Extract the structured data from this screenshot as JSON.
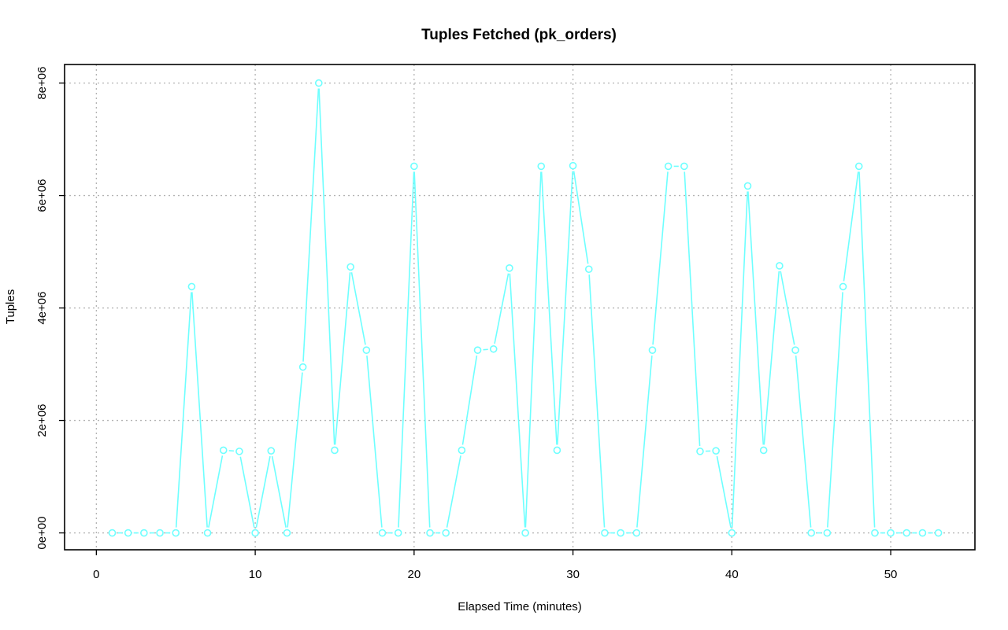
{
  "chart_data": {
    "type": "line",
    "title": "Tuples Fetched (pk_orders)",
    "xlabel": "Elapsed Time (minutes)",
    "ylabel": "Tuples",
    "xlim": [
      -2,
      55.3
    ],
    "ylim": [
      -300000,
      8330000
    ],
    "x_ticks": [
      0,
      10,
      20,
      30,
      40,
      50
    ],
    "x_tick_labels": [
      "0",
      "10",
      "20",
      "30",
      "40",
      "50"
    ],
    "y_ticks": [
      0,
      2000000,
      4000000,
      6000000,
      8000000
    ],
    "y_tick_labels": [
      "0e+00",
      "2e+06",
      "4e+06",
      "6e+06",
      "8e+06"
    ],
    "grid": true,
    "color": "#6effff",
    "series": [
      {
        "x": [
          1,
          2,
          3,
          4,
          5,
          6,
          7,
          8,
          9,
          10,
          11,
          12,
          13,
          14,
          15,
          16,
          17,
          18,
          19,
          20,
          21,
          22,
          23,
          24,
          25,
          26,
          27,
          28,
          29,
          30,
          31,
          32,
          33,
          34,
          35,
          36,
          37,
          38,
          39,
          40,
          41,
          42,
          43,
          44,
          45,
          46,
          47,
          48,
          49,
          50,
          51,
          52,
          53
        ],
        "values": [
          0,
          0,
          0,
          0,
          0,
          4380000,
          0,
          1470000,
          1450000,
          0,
          1460000,
          0,
          2950000,
          8000000,
          1470000,
          4730000,
          3250000,
          0,
          0,
          6520000,
          0,
          0,
          1470000,
          3250000,
          3270000,
          4710000,
          0,
          6520000,
          1470000,
          6530000,
          4690000,
          0,
          0,
          0,
          3250000,
          6520000,
          6520000,
          1450000,
          1460000,
          0,
          6170000,
          1470000,
          4750000,
          3250000,
          0,
          0,
          4380000,
          6520000,
          0,
          0,
          0,
          0,
          0
        ]
      }
    ]
  }
}
